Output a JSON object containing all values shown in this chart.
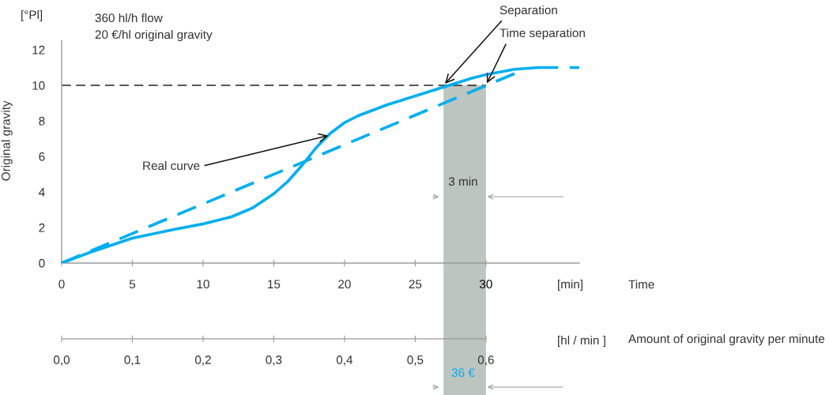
{
  "chart_data": {
    "type": "line",
    "ylabel": "Original gravity",
    "xlabel": "Time",
    "x2label": "Amount of original gravity per minute",
    "xlim": [
      0,
      36.6
    ],
    "xticks": [
      0,
      5,
      10,
      15,
      20,
      25,
      30
    ],
    "x2lim": [
      0,
      0.732
    ],
    "x2ticks": [
      {
        "value": 0,
        "label": "0,0"
      },
      {
        "value": 0.1,
        "label": "0,1"
      },
      {
        "value": 0.2,
        "label": "0,2"
      },
      {
        "value": 0.3,
        "label": "0,3"
      },
      {
        "value": 0.4,
        "label": "0,4"
      },
      {
        "value": 0.5,
        "label": "0,5"
      },
      {
        "value": 0.6,
        "label": "0,6"
      }
    ],
    "ylim": [
      0,
      12.5
    ],
    "yticks": [
      0,
      2,
      4,
      6,
      8,
      10,
      12
    ],
    "series": [
      {
        "color": "#00aeef",
        "line_style": "solid",
        "x": [
          0,
          2,
          5,
          8,
          10,
          12,
          13.5,
          15,
          16,
          17,
          18,
          19,
          20,
          21,
          23,
          25,
          27,
          29,
          30,
          32,
          33.7
        ],
        "values": [
          0,
          0.6,
          1.4,
          1.9,
          2.2,
          2.6,
          3.1,
          3.9,
          4.6,
          5.5,
          6.5,
          7.3,
          7.9,
          8.3,
          8.9,
          9.4,
          9.9,
          10.4,
          10.6,
          10.9,
          11.0
        ]
      },
      {
        "color": "#00aeef",
        "line_style": "dashed",
        "x": [
          0,
          32.3
        ],
        "values": [
          0,
          10.75
        ]
      },
      {
        "color": "#00aeef",
        "line_style": "dashed",
        "x": [
          33.7,
          36.6
        ],
        "values": [
          11.0,
          11.0
        ]
      }
    ],
    "ref_lines": [
      {
        "axis": "y",
        "value": 10,
        "color": "#222222",
        "line_style": "dashed",
        "label": null
      }
    ],
    "bands": [
      {
        "axis": "x",
        "from": 27,
        "to": 30,
        "color": "#bcc5c0",
        "label": null
      }
    ],
    "annotations": [
      "[°Pl]",
      "360 hl/h flow",
      "20 €/hl original gravity",
      {
        "text": "Real curve",
        "x": 19,
        "y": 7.2
      },
      {
        "text": "Separation",
        "x": 27,
        "y": 10
      },
      {
        "text": "Time separation",
        "x": 30,
        "y": 10
      },
      "3 min",
      "[min]",
      "[hl / min ]",
      "36 €"
    ],
    "grid": false,
    "legend": false
  }
}
